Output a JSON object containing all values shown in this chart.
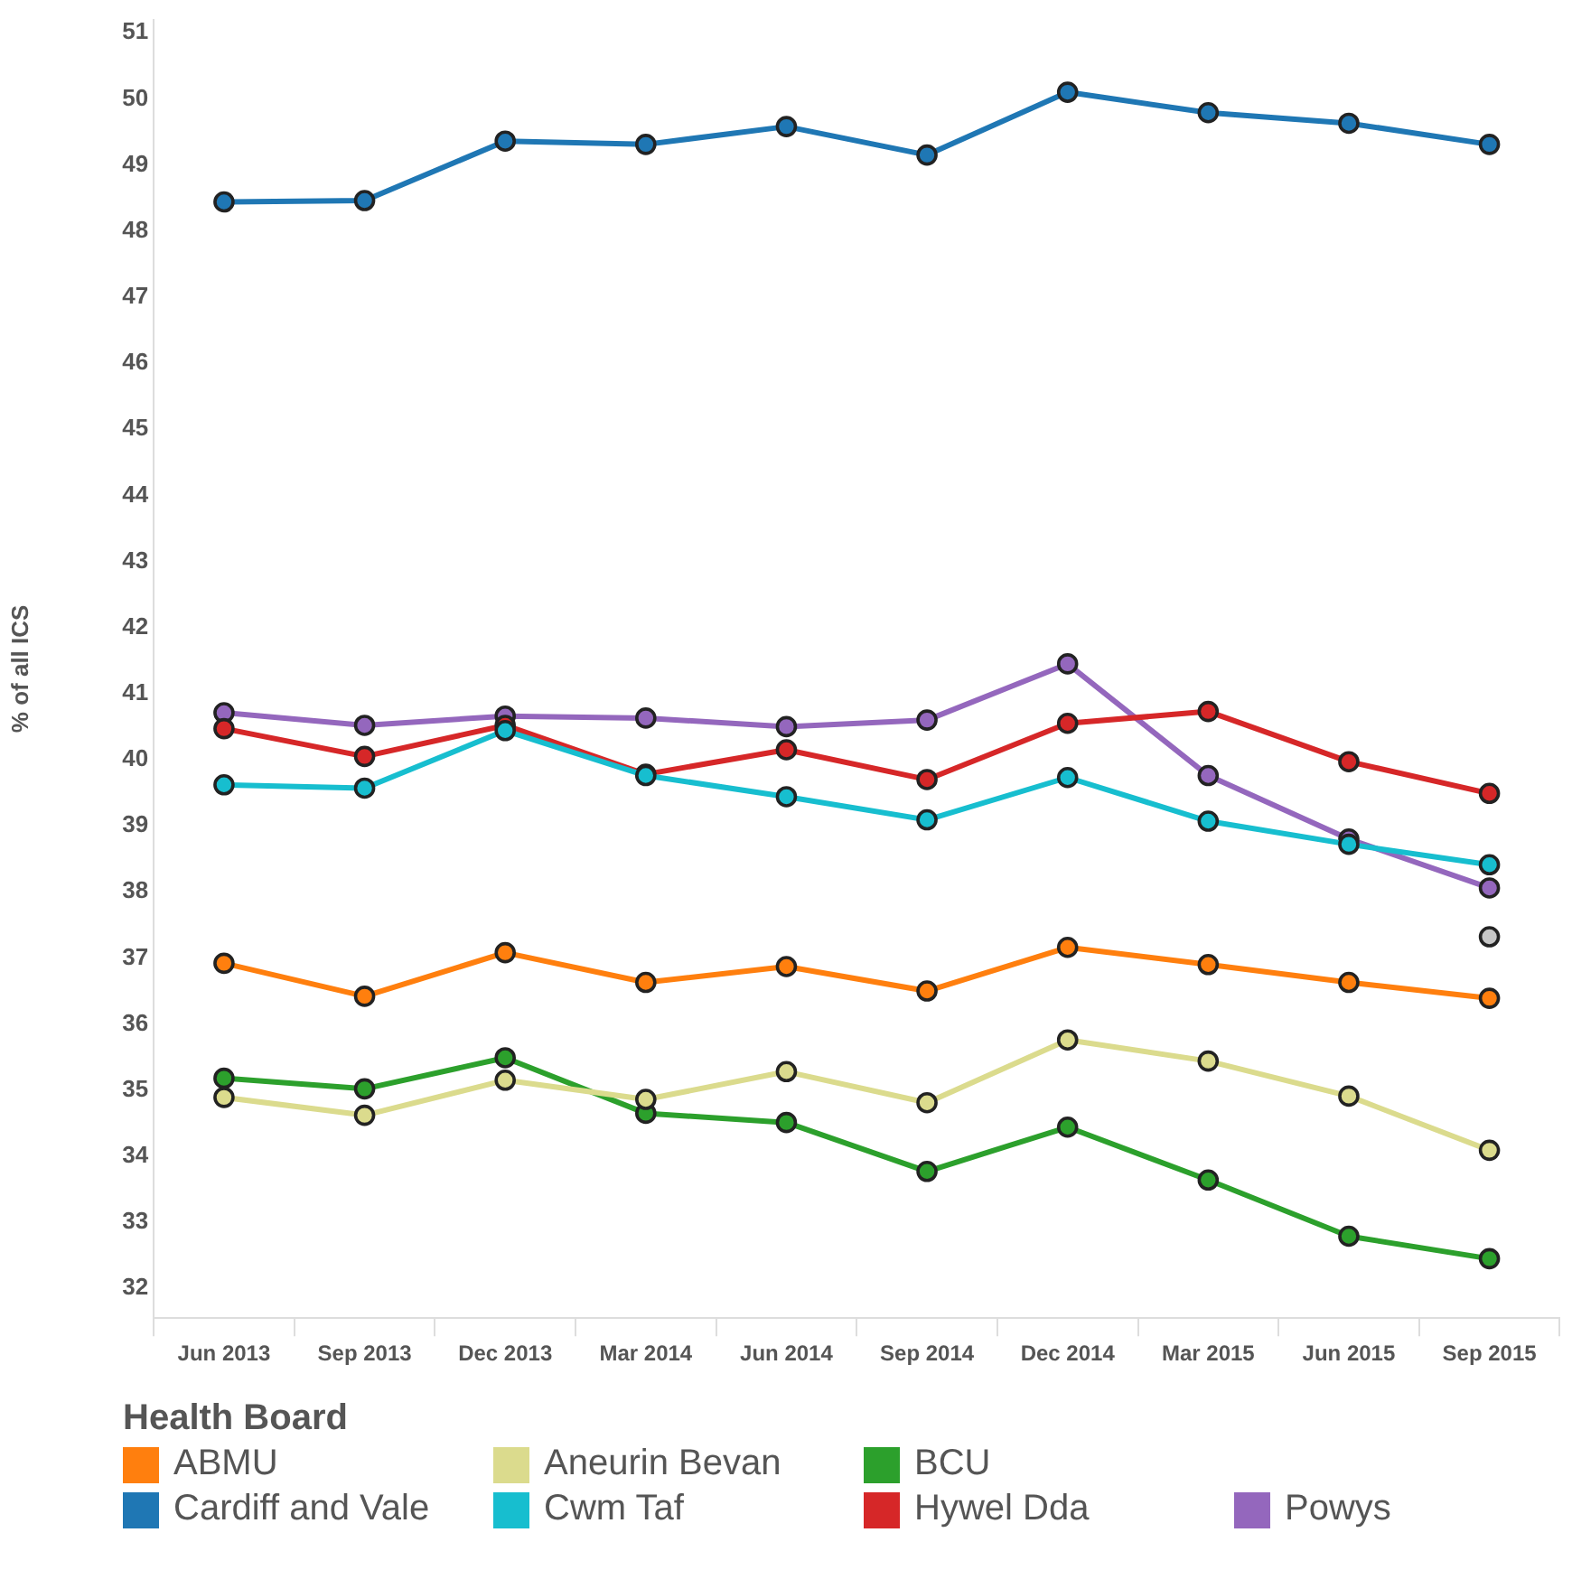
{
  "chart_data": {
    "type": "line",
    "ylabel": "% of all ICS",
    "legend_title": "Health Board",
    "legend": "bottom",
    "grid": false,
    "marker": "circle",
    "categories": [
      "Jun 2013",
      "Sep 2013",
      "Dec 2013",
      "Mar 2014",
      "Jun 2014",
      "Sep 2014",
      "Dec 2014",
      "Mar 2015",
      "Jun 2015",
      "Sep 2015"
    ],
    "ylim": [
      31.55,
      51.2
    ],
    "yticks": [
      32,
      33,
      34,
      35,
      36,
      37,
      38,
      39,
      40,
      41,
      42,
      43,
      44,
      45,
      46,
      47,
      48,
      49,
      50,
      51
    ],
    "series": [
      {
        "name": "ABMU",
        "color": "#ff7f0e",
        "values": [
          36.92,
          36.42,
          37.08,
          36.63,
          36.87,
          36.5,
          37.16,
          36.9,
          36.63,
          36.39
        ]
      },
      {
        "name": "Aneurin Bevan",
        "color": "#dbdb8d",
        "values": [
          34.89,
          34.62,
          35.15,
          34.86,
          35.28,
          34.81,
          35.76,
          35.44,
          34.91,
          34.09
        ]
      },
      {
        "name": "BCU",
        "color": "#2ca02c",
        "values": [
          35.18,
          35.02,
          35.49,
          34.65,
          34.51,
          33.77,
          34.44,
          33.64,
          32.79,
          32.45
        ]
      },
      {
        "name": "Cardiff and Vale",
        "color": "#1f77b4",
        "values": [
          48.44,
          48.46,
          49.36,
          49.31,
          49.58,
          49.15,
          50.1,
          49.79,
          49.63,
          49.31
        ]
      },
      {
        "name": "Cwm Taf",
        "color": "#17becf",
        "values": [
          39.62,
          39.57,
          40.44,
          39.76,
          39.44,
          39.09,
          39.73,
          39.07,
          38.72,
          38.41
        ]
      },
      {
        "name": "Hywel Dda",
        "color": "#d62728",
        "values": [
          40.47,
          40.05,
          40.52,
          39.78,
          40.15,
          39.7,
          40.55,
          40.73,
          39.97,
          39.49
        ]
      },
      {
        "name": "Powys",
        "color": "#9467bd",
        "values": [
          40.71,
          40.52,
          40.66,
          40.63,
          40.5,
          40.6,
          41.45,
          39.76,
          38.8,
          38.06
        ]
      },
      {
        "color": "#c7c7c7",
        "values": [
          null,
          null,
          null,
          null,
          null,
          null,
          null,
          null,
          null,
          37.32
        ]
      }
    ]
  }
}
